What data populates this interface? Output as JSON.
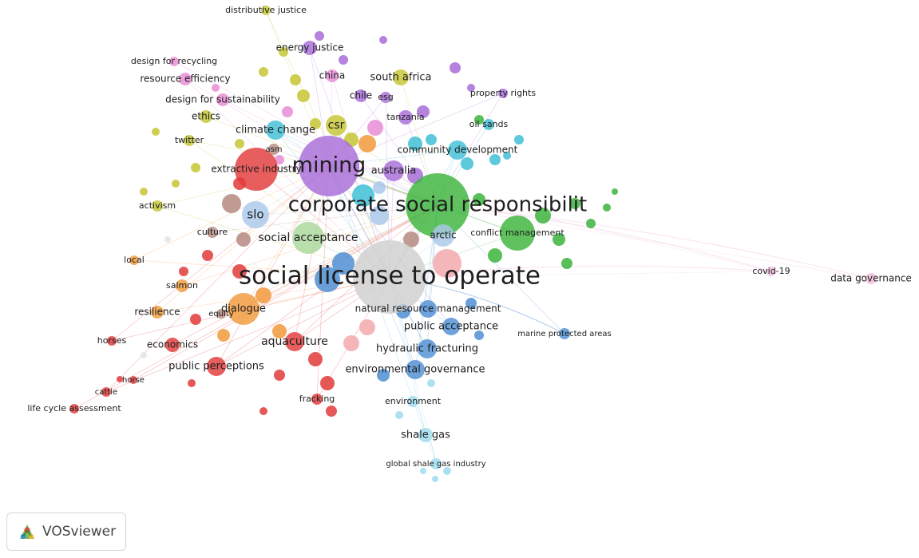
{
  "cluster_colors": {
    "red": "#e23a3a",
    "green": "#3cb43c",
    "blue": "#4f8fd4",
    "yellow": "#c6c634",
    "purple": "#a86cd8",
    "cyan": "#3fbfd6",
    "orange": "#f29a3c",
    "brown": "#b58a80",
    "pink": "#e88cd6",
    "lightpink": "#f3a9ae",
    "lightblue": "#a9c8ea",
    "lightgreen": "#a9d89a",
    "gray": "#cfcfcf",
    "paleblue": "#9fdcee",
    "palepink": "#f2bedd",
    "white": "#e4e4e4"
  },
  "nodes": [
    {
      "label": "social license to operate",
      "cluster": "gray",
      "weight": 10
    },
    {
      "label": "corporate social responsibilit",
      "cluster": "green",
      "weight": 8
    },
    {
      "label": "mining",
      "cluster": "purple",
      "weight": 7
    },
    {
      "label": "social acceptance",
      "cluster": "lightgreen",
      "weight": 3.2
    },
    {
      "label": "slo",
      "cluster": "lightblue",
      "weight": 3
    },
    {
      "label": "csr",
      "cluster": "yellow",
      "weight": 2.4
    },
    {
      "label": "australia",
      "cluster": "purple",
      "weight": 2.4
    },
    {
      "label": "community development",
      "cluster": "cyan",
      "weight": 2.3
    },
    {
      "label": "aquaculture",
      "cluster": "red",
      "weight": 2.3
    },
    {
      "label": "dialogue",
      "cluster": "orange",
      "weight": 2.2
    },
    {
      "label": "arctic",
      "cluster": "lightblue",
      "weight": 2
    },
    {
      "label": "conflict management",
      "cluster": "green",
      "weight": 2.2
    },
    {
      "label": "climate change",
      "cluster": "cyan",
      "weight": 2
    },
    {
      "label": "public perceptions",
      "cluster": "red",
      "weight": 2
    },
    {
      "label": "hydraulic fracturing",
      "cluster": "blue",
      "weight": 2
    },
    {
      "label": "environmental governance",
      "cluster": "blue",
      "weight": 2
    },
    {
      "label": "public acceptance",
      "cluster": "blue",
      "weight": 1.9
    },
    {
      "label": "natural resource management",
      "cluster": "blue",
      "weight": 1.8
    },
    {
      "label": "extractive industry",
      "cluster": "red",
      "weight": 1.8
    },
    {
      "label": "south africa",
      "cluster": "yellow",
      "weight": 1.7
    },
    {
      "label": "energy justice",
      "cluster": "purple",
      "weight": 1.5
    },
    {
      "label": "economics",
      "cluster": "red",
      "weight": 1.4
    },
    {
      "label": "resource efficiency",
      "cluster": "pink",
      "weight": 1.4
    },
    {
      "label": "design for sustainability",
      "cluster": "pink",
      "weight": 1.3
    },
    {
      "label": "shale gas",
      "cluster": "paleblue",
      "weight": 1.4
    },
    {
      "label": "tanzania",
      "cluster": "purple",
      "weight": 1.2
    },
    {
      "label": "china",
      "cluster": "pink",
      "weight": 1.2
    },
    {
      "label": "chile",
      "cluster": "purple",
      "weight": 1.2
    },
    {
      "label": "esg",
      "cluster": "purple",
      "weight": 1
    },
    {
      "label": "ethics",
      "cluster": "yellow",
      "weight": 1.2
    },
    {
      "label": "twitter",
      "cluster": "yellow",
      "weight": 1
    },
    {
      "label": "asm",
      "cluster": "brown",
      "weight": 1
    },
    {
      "label": "activism",
      "cluster": "yellow",
      "weight": 1.1
    },
    {
      "label": "culture",
      "cluster": "brown",
      "weight": 1
    },
    {
      "label": "local",
      "cluster": "orange",
      "weight": 1
    },
    {
      "label": "salmon",
      "cluster": "orange",
      "weight": 1.1
    },
    {
      "label": "resilience",
      "cluster": "orange",
      "weight": 1.2
    },
    {
      "label": "equity",
      "cluster": "brown",
      "weight": 1
    },
    {
      "label": "horses",
      "cluster": "red",
      "weight": 1
    },
    {
      "label": "horse",
      "cluster": "red",
      "weight": 0.9
    },
    {
      "label": "cattle",
      "cluster": "red",
      "weight": 0.9
    },
    {
      "label": "life cycle assessment",
      "cluster": "red",
      "weight": 1
    },
    {
      "label": "fracking",
      "cluster": "red",
      "weight": 1.1
    },
    {
      "label": "environment",
      "cluster": "paleblue",
      "weight": 1.1
    },
    {
      "label": "global shale gas industry",
      "cluster": "paleblue",
      "weight": 1
    },
    {
      "label": "marine protected areas",
      "cluster": "blue",
      "weight": 1
    },
    {
      "label": "covid-19",
      "cluster": "palepink",
      "weight": 1.1
    },
    {
      "label": "data governance",
      "cluster": "palepink",
      "weight": 1.2
    },
    {
      "label": "property rights",
      "cluster": "purple",
      "weight": 1
    },
    {
      "label": "oil sands",
      "cluster": "cyan",
      "weight": 1.1
    },
    {
      "label": "distributive justice",
      "cluster": "yellow",
      "weight": 1
    },
    {
      "label": "design for recycling",
      "cluster": "pink",
      "weight": 1
    }
  ],
  "branding": {
    "logo_icon": "vosviewer-logo-icon",
    "label": "VOSviewer"
  }
}
